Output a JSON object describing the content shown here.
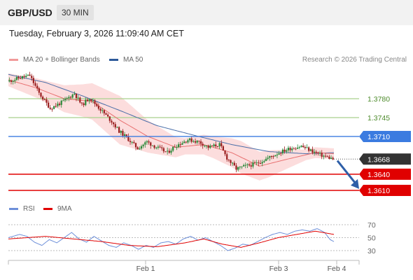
{
  "header": {
    "pair": "GBP/USD",
    "timeframe": "30 MIN"
  },
  "timestamp": "Tuesday, February 3, 2026 11:09:40 AM CET",
  "legend": {
    "ma_label": "MA 20 + Bollinger Bands",
    "ma50_label": "MA 50",
    "rsi_label": "RSI",
    "ma9_label": "9MA",
    "credit": "Research © 2026 Trading Central"
  },
  "colors": {
    "up": "#2a8a3a",
    "down": "#9a1f1f",
    "ma20": "#e87070",
    "band": "#fbd5d5",
    "ma50": "#4a6ea8",
    "resistance": "#a9d18e",
    "pivot": "#3b7be0",
    "support": "#e00000",
    "rsi": "#6d8fd9",
    "rsi_ma": "#e00000",
    "last": "#333333"
  },
  "chart_data": [
    {
      "type": "candlestick",
      "y_axis_labels": [
        "1.3780",
        "1.3745",
        "1.3710",
        "1.3668",
        "1.3640",
        "1.3610"
      ],
      "x_tick_labels": [
        "Feb 1",
        "Feb 3",
        "Feb 4"
      ],
      "ylim": [
        1.3595,
        1.3835
      ],
      "levels": [
        {
          "label": "1.3780",
          "value": 1.378,
          "kind": "resistance"
        },
        {
          "label": "1.3745",
          "value": 1.3745,
          "kind": "resistance"
        },
        {
          "label": "1.3710",
          "value": 1.371,
          "kind": "pivot"
        },
        {
          "label": "1.3640",
          "value": 1.364,
          "kind": "support"
        },
        {
          "label": "1.3610",
          "value": 1.361,
          "kind": "support"
        }
      ],
      "last_price": {
        "label": "1.3668",
        "value": 1.3668
      },
      "forecast": {
        "direction": "down",
        "from": 1.3665,
        "to": 1.3618
      },
      "close_path": [
        [
          0,
          1.3812
        ],
        [
          8,
          1.382
        ],
        [
          12,
          1.3823
        ],
        [
          17,
          1.379
        ],
        [
          23,
          1.3762
        ],
        [
          30,
          1.3775
        ],
        [
          36,
          1.379
        ],
        [
          40,
          1.3768
        ],
        [
          44,
          1.3782
        ],
        [
          50,
          1.376
        ],
        [
          56,
          1.3738
        ],
        [
          60,
          1.372
        ],
        [
          64,
          1.3708
        ],
        [
          70,
          1.3688
        ],
        [
          75,
          1.37
        ],
        [
          80,
          1.369
        ],
        [
          86,
          1.368
        ],
        [
          90,
          1.3692
        ],
        [
          97,
          1.3704
        ],
        [
          103,
          1.37
        ],
        [
          108,
          1.369
        ],
        [
          114,
          1.3695
        ],
        [
          118,
          1.367
        ],
        [
          123,
          1.365
        ],
        [
          128,
          1.3655
        ],
        [
          134,
          1.366
        ],
        [
          140,
          1.367
        ],
        [
          146,
          1.368
        ],
        [
          152,
          1.3688
        ],
        [
          158,
          1.3692
        ],
        [
          163,
          1.3684
        ],
        [
          169,
          1.3675
        ],
        [
          175,
          1.3668
        ]
      ],
      "ma50_path": [
        [
          0,
          1.3825
        ],
        [
          20,
          1.381
        ],
        [
          40,
          1.3785
        ],
        [
          60,
          1.3758
        ],
        [
          80,
          1.373
        ],
        [
          100,
          1.3712
        ],
        [
          120,
          1.3695
        ],
        [
          140,
          1.3682
        ],
        [
          160,
          1.3678
        ],
        [
          175,
          1.368
        ]
      ],
      "ma20_path": [
        [
          0,
          1.3815
        ],
        [
          15,
          1.38
        ],
        [
          30,
          1.378
        ],
        [
          45,
          1.3775
        ],
        [
          60,
          1.374
        ],
        [
          75,
          1.371
        ],
        [
          90,
          1.369
        ],
        [
          105,
          1.3695
        ],
        [
          120,
          1.368
        ],
        [
          135,
          1.3655
        ],
        [
          150,
          1.3668
        ],
        [
          165,
          1.368
        ],
        [
          175,
          1.3678
        ]
      ],
      "band_width": [
        [
          0,
          0.0012
        ],
        [
          20,
          0.002
        ],
        [
          40,
          0.003
        ],
        [
          60,
          0.0045
        ],
        [
          75,
          0.003
        ],
        [
          95,
          0.0015
        ],
        [
          110,
          0.002
        ],
        [
          125,
          0.003
        ],
        [
          140,
          0.0025
        ],
        [
          160,
          0.001
        ],
        [
          175,
          0.001
        ]
      ]
    },
    {
      "type": "line",
      "series": [
        {
          "name": "RSI"
        },
        {
          "name": "9MA"
        }
      ],
      "y_tick_labels": [
        "70",
        "50",
        "30"
      ],
      "ylim": [
        20,
        80
      ],
      "gridlines": [
        70,
        50,
        30
      ],
      "rsi_path": [
        [
          0,
          50
        ],
        [
          6,
          55
        ],
        [
          10,
          52
        ],
        [
          14,
          43
        ],
        [
          18,
          38
        ],
        [
          22,
          47
        ],
        [
          26,
          42
        ],
        [
          30,
          50
        ],
        [
          34,
          58
        ],
        [
          38,
          48
        ],
        [
          42,
          43
        ],
        [
          46,
          52
        ],
        [
          50,
          45
        ],
        [
          54,
          38
        ],
        [
          58,
          35
        ],
        [
          62,
          42
        ],
        [
          66,
          38
        ],
        [
          70,
          32
        ],
        [
          74,
          38
        ],
        [
          78,
          35
        ],
        [
          82,
          42
        ],
        [
          86,
          44
        ],
        [
          90,
          40
        ],
        [
          94,
          48
        ],
        [
          98,
          52
        ],
        [
          102,
          46
        ],
        [
          106,
          50
        ],
        [
          110,
          44
        ],
        [
          114,
          38
        ],
        [
          118,
          30
        ],
        [
          122,
          34
        ],
        [
          126,
          40
        ],
        [
          130,
          38
        ],
        [
          134,
          44
        ],
        [
          138,
          50
        ],
        [
          142,
          55
        ],
        [
          146,
          58
        ],
        [
          150,
          55
        ],
        [
          154,
          60
        ],
        [
          158,
          62
        ],
        [
          162,
          60
        ],
        [
          166,
          64
        ],
        [
          170,
          58
        ],
        [
          173,
          47
        ],
        [
          175,
          44
        ]
      ],
      "ma_path": [
        [
          0,
          48
        ],
        [
          20,
          52
        ],
        [
          35,
          48
        ],
        [
          50,
          44
        ],
        [
          65,
          38
        ],
        [
          80,
          36
        ],
        [
          95,
          42
        ],
        [
          105,
          48
        ],
        [
          115,
          40
        ],
        [
          125,
          35
        ],
        [
          135,
          42
        ],
        [
          145,
          50
        ],
        [
          155,
          55
        ],
        [
          165,
          60
        ],
        [
          175,
          55
        ]
      ]
    }
  ]
}
